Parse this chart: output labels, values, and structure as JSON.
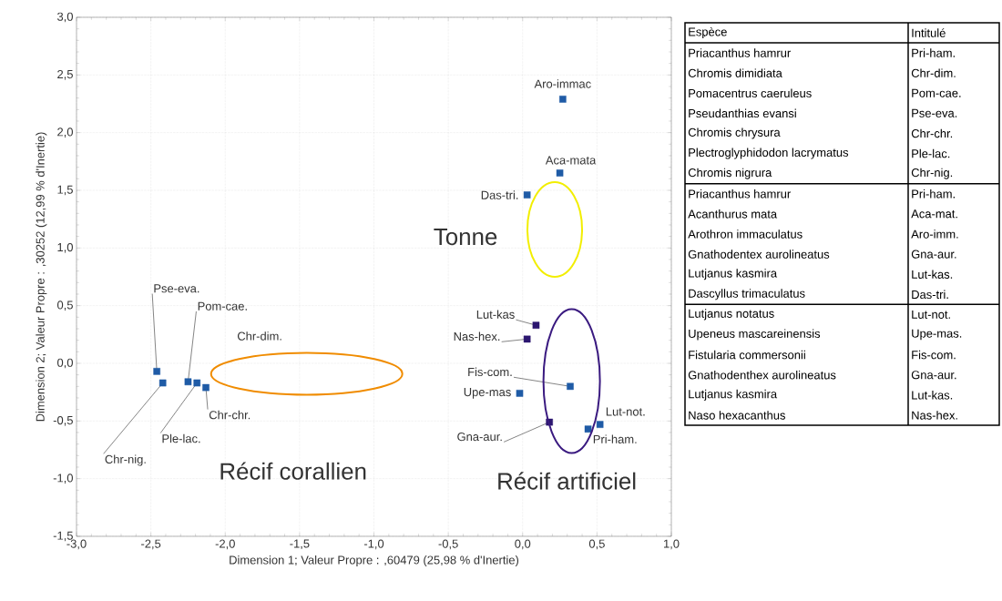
{
  "chart_data": [
    {
      "type": "scatter",
      "xlabel": "Dimension 1; Valeur Propre : ,60479 (25,98  % d'Inertie)",
      "ylabel": "Dimension 2; Valeur Propre : ,30252 (12,99  % d'Inertie)",
      "xlim": [
        -3,
        1
      ],
      "ylim": [
        -1.5,
        3
      ],
      "xticks": [
        {
          "value": -3,
          "label": "-3,0"
        },
        {
          "value": -2.5,
          "label": "-2,5"
        },
        {
          "value": -2,
          "label": "-2,0"
        },
        {
          "value": -1.5,
          "label": "-1,5"
        },
        {
          "value": -1,
          "label": "-1,0"
        },
        {
          "value": -0.5,
          "label": "-0,5"
        },
        {
          "value": 0,
          "label": "0,0"
        },
        {
          "value": 0.5,
          "label": "0,5"
        },
        {
          "value": 1,
          "label": "1,0"
        }
      ],
      "yticks": [
        {
          "value": -1.5,
          "label": "-1,5"
        },
        {
          "value": -1,
          "label": "-1,0"
        },
        {
          "value": -0.5,
          "label": "-0,5"
        },
        {
          "value": 0,
          "label": "0,0"
        },
        {
          "value": 0.5,
          "label": "0,5"
        },
        {
          "value": 1,
          "label": "1,0"
        },
        {
          "value": 1.5,
          "label": "1,5"
        },
        {
          "value": 2,
          "label": "2,0"
        },
        {
          "value": 2.5,
          "label": "2,5"
        },
        {
          "value": 3,
          "label": "3,0"
        }
      ],
      "grid": true,
      "marker": "square",
      "series": [
        {
          "color": "#1f5ba6",
          "x": [
            0.27,
            0.25,
            0.03,
            0.32,
            -0.02,
            0.44,
            0.52,
            -2.46,
            -2.25,
            -2.17,
            -2.13,
            -2.19,
            -2.42
          ],
          "values": [
            2.29,
            1.65,
            1.46,
            -0.2,
            -0.26,
            -0.57,
            -0.53,
            -0.07,
            -0.16,
            null,
            -0.21,
            -0.17,
            -0.17
          ]
        },
        {
          "color": "#2c1670",
          "x": [
            0.09,
            0.03,
            0.18
          ],
          "values": [
            0.33,
            0.21,
            -0.51
          ]
        }
      ],
      "annotations": [
        "Tonne",
        "Récif corallien",
        "Récif artificiel",
        "Chr-dim.",
        {
          "text": "Aro-immac",
          "x": 0.27,
          "y": 2.29
        },
        {
          "text": "Aca-mata",
          "x": 0.25,
          "y": 1.65
        },
        {
          "text": "Das-tri.",
          "x": 0.03,
          "y": 1.46
        },
        {
          "text": "Lut-kas",
          "x": 0.09,
          "y": 0.33
        },
        {
          "text": "Nas-hex.",
          "x": 0.03,
          "y": 0.21
        },
        {
          "text": "Fis-com.",
          "x": 0.32,
          "y": -0.2
        },
        {
          "text": "Upe-mas",
          "x": -0.02,
          "y": -0.26
        },
        {
          "text": "Gna-aur.",
          "x": 0.18,
          "y": -0.51
        },
        {
          "text": "Pri-ham.",
          "x": 0.44,
          "y": -0.57
        },
        {
          "text": "Lut-not.",
          "x": 0.52,
          "y": -0.53
        },
        {
          "text": "Pse-eva.",
          "x": -2.46,
          "y": -0.07
        },
        {
          "text": "Pom-cae.",
          "x": -2.25,
          "y": -0.16
        },
        {
          "text": "Chr-chr.",
          "x": -2.13,
          "y": -0.21
        },
        {
          "text": "Ple-lac.",
          "x": -2.19,
          "y": -0.17
        },
        {
          "text": "Chr-nig.",
          "x": -2.42,
          "y": -0.17
        }
      ]
    },
    {
      "type": "other",
      "annotations": [
        "Espèce",
        "Intitulé",
        "Priacanthus hamrur",
        "Pri-ham.",
        "Chromis dimidiata",
        "Chr-dim.",
        "Pomacentrus caeruleus",
        "Pom-cae.",
        "Pseudanthias evansi",
        "Pse-eva.",
        "Chromis chrysura",
        "Chr-chr.",
        "Plectroglyphidodon lacrymatus",
        "Ple-lac.",
        "Chromis nigrura",
        "Chr-nig.",
        "Priacanthus hamrur",
        "Pri-ham.",
        "Acanthurus mata",
        "Aca-mat.",
        "Arothron immaculatus",
        "Aro-imm.",
        "Gnathodentex aurolineatus",
        "Gna-aur.",
        "Lutjanus kasmira",
        "Lut-kas.",
        "Dascyllus trimaculatus",
        "Das-tri.",
        "Lutjanus notatus",
        "Lut-not.",
        "Upeneus mascareinensis",
        "Upe-mas.",
        "Fistularia commersonii",
        "Fis-com.",
        "Gnathodenthex aurolineatus",
        "Gna-aur.",
        "Lutjanus kasmira",
        "Lut-kas.",
        "Naso hexacanthus",
        "Nas-hex."
      ]
    }
  ]
}
